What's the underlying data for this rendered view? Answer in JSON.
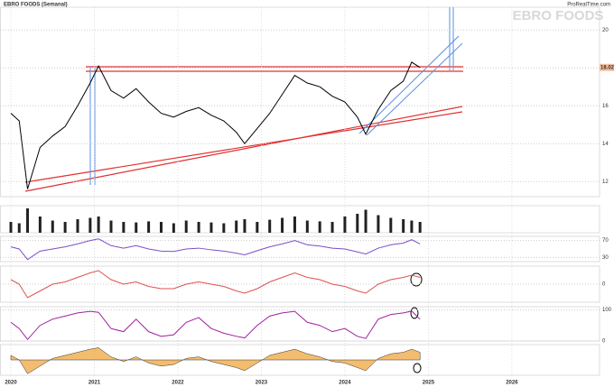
{
  "title": "EBRO FOODS (Semanal)",
  "watermark": "EBRO FOODS",
  "site": "ProRealTime.com",
  "chart_data": [
    {
      "type": "line",
      "color": "#000000",
      "x": [
        2020.0,
        2020.1,
        2020.2,
        2020.35,
        2020.5,
        2020.65,
        2020.8,
        2020.95,
        2021.05,
        2021.2,
        2021.35,
        2021.5,
        2021.65,
        2021.8,
        2021.95,
        2022.1,
        2022.25,
        2022.4,
        2022.55,
        2022.7,
        2022.8,
        2022.95,
        2023.1,
        2023.25,
        2023.4,
        2023.55,
        2023.7,
        2023.85,
        2024.0,
        2024.15,
        2024.25,
        2024.4,
        2024.55,
        2024.7,
        2024.8,
        2024.9
      ],
      "values": [
        15.6,
        15.2,
        11.6,
        13.8,
        14.4,
        14.9,
        16.0,
        17.2,
        18.1,
        16.8,
        16.4,
        16.9,
        16.2,
        15.6,
        15.4,
        15.7,
        15.9,
        15.5,
        15.2,
        14.6,
        14.0,
        14.8,
        15.6,
        16.6,
        17.6,
        17.2,
        17.0,
        16.5,
        16.2,
        15.4,
        14.5,
        15.8,
        16.8,
        17.3,
        18.3,
        18.02
      ],
      "xlim": [
        2019.87,
        2027.05
      ],
      "xticks": [
        2020,
        2021,
        2022,
        2023,
        2024,
        2025,
        2026
      ],
      "ylim": [
        11.2,
        21.2
      ],
      "yticks": [
        12,
        14,
        16,
        18,
        20
      ]
    },
    {
      "type": "bar",
      "color": "#222222",
      "x": [
        2020.0,
        2020.1,
        2020.2,
        2020.35,
        2020.5,
        2020.65,
        2020.8,
        2020.95,
        2021.05,
        2021.2,
        2021.35,
        2021.5,
        2021.65,
        2021.8,
        2021.95,
        2022.1,
        2022.25,
        2022.4,
        2022.55,
        2022.7,
        2022.8,
        2022.95,
        2023.1,
        2023.25,
        2023.4,
        2023.55,
        2023.7,
        2023.85,
        2024.0,
        2024.15,
        2024.25,
        2024.4,
        2024.55,
        2024.7,
        2024.8,
        2024.9
      ],
      "values": [
        40,
        35,
        90,
        60,
        45,
        40,
        50,
        55,
        60,
        45,
        40,
        38,
        42,
        40,
        35,
        45,
        40,
        38,
        35,
        45,
        50,
        40,
        48,
        55,
        60,
        45,
        42,
        40,
        60,
        70,
        85,
        65,
        55,
        50,
        45,
        40
      ],
      "ylim": [
        0,
        100
      ]
    },
    {
      "type": "line",
      "color": "#7b4fc9",
      "x": [
        2020.0,
        2020.1,
        2020.2,
        2020.35,
        2020.5,
        2020.65,
        2020.8,
        2020.95,
        2021.05,
        2021.2,
        2021.35,
        2021.5,
        2021.65,
        2021.8,
        2021.95,
        2022.1,
        2022.25,
        2022.4,
        2022.55,
        2022.7,
        2022.8,
        2022.95,
        2023.1,
        2023.25,
        2023.4,
        2023.55,
        2023.7,
        2023.85,
        2024.0,
        2024.15,
        2024.25,
        2024.4,
        2024.55,
        2024.7,
        2024.8,
        2024.9
      ],
      "values": [
        55,
        50,
        25,
        45,
        50,
        55,
        62,
        70,
        74,
        58,
        52,
        58,
        50,
        45,
        44,
        50,
        52,
        48,
        45,
        40,
        36,
        46,
        55,
        62,
        70,
        60,
        57,
        52,
        50,
        43,
        38,
        52,
        60,
        64,
        72,
        62
      ],
      "ylim": [
        20,
        80
      ],
      "yticks": [
        30,
        70
      ]
    },
    {
      "type": "line",
      "color": "#e05050",
      "x": [
        2020.0,
        2020.1,
        2020.2,
        2020.35,
        2020.5,
        2020.65,
        2020.8,
        2020.95,
        2021.05,
        2021.2,
        2021.35,
        2021.5,
        2021.65,
        2021.8,
        2021.95,
        2022.1,
        2022.25,
        2022.4,
        2022.55,
        2022.7,
        2022.8,
        2022.95,
        2023.1,
        2023.25,
        2023.4,
        2023.55,
        2023.7,
        2023.85,
        2024.0,
        2024.15,
        2024.25,
        2024.4,
        2024.55,
        2024.7,
        2024.8,
        2024.9
      ],
      "values": [
        0.2,
        0.0,
        -0.6,
        -0.3,
        0.0,
        0.1,
        0.3,
        0.5,
        0.6,
        0.2,
        0.0,
        0.1,
        -0.1,
        -0.2,
        -0.2,
        0.0,
        0.1,
        0.0,
        -0.1,
        -0.3,
        -0.4,
        -0.2,
        0.1,
        0.3,
        0.5,
        0.3,
        0.2,
        0.0,
        -0.1,
        -0.3,
        -0.4,
        0.0,
        0.2,
        0.3,
        0.4,
        0.3
      ],
      "ylim": [
        -0.8,
        0.8
      ],
      "yticks": [
        0
      ]
    },
    {
      "type": "line",
      "color": "#a020a0",
      "x": [
        2020.0,
        2020.1,
        2020.2,
        2020.35,
        2020.5,
        2020.65,
        2020.8,
        2020.95,
        2021.05,
        2021.2,
        2021.35,
        2021.5,
        2021.65,
        2021.8,
        2021.95,
        2022.1,
        2022.25,
        2022.4,
        2022.55,
        2022.7,
        2022.8,
        2022.95,
        2023.1,
        2023.25,
        2023.4,
        2023.55,
        2023.7,
        2023.85,
        2024.0,
        2024.15,
        2024.25,
        2024.4,
        2024.55,
        2024.7,
        2024.8,
        2024.9
      ],
      "values": [
        60,
        40,
        5,
        50,
        70,
        80,
        90,
        95,
        92,
        40,
        30,
        70,
        30,
        15,
        20,
        60,
        75,
        40,
        25,
        15,
        10,
        50,
        80,
        90,
        95,
        60,
        50,
        30,
        40,
        15,
        8,
        70,
        85,
        90,
        96,
        70
      ],
      "ylim": [
        0,
        110
      ],
      "yticks": [
        0,
        100
      ]
    },
    {
      "type": "area",
      "color": "#f0a030",
      "x": [
        2020.0,
        2020.1,
        2020.2,
        2020.35,
        2020.5,
        2020.65,
        2020.8,
        2020.95,
        2021.05,
        2021.2,
        2021.35,
        2021.5,
        2021.65,
        2021.8,
        2021.95,
        2022.1,
        2022.25,
        2022.4,
        2022.55,
        2022.7,
        2022.8,
        2022.95,
        2023.1,
        2023.25,
        2023.4,
        2023.55,
        2023.7,
        2023.85,
        2024.0,
        2024.15,
        2024.25,
        2024.4,
        2024.55,
        2024.7,
        2024.8,
        2024.9
      ],
      "values": [
        0.3,
        0.0,
        -0.9,
        -0.4,
        0.1,
        0.3,
        0.5,
        0.7,
        0.8,
        0.2,
        -0.1,
        0.2,
        -0.2,
        -0.4,
        -0.3,
        0.1,
        0.2,
        -0.1,
        -0.3,
        -0.5,
        -0.7,
        -0.2,
        0.3,
        0.5,
        0.7,
        0.4,
        0.2,
        -0.1,
        -0.2,
        -0.5,
        -0.7,
        0.1,
        0.4,
        0.5,
        0.7,
        0.5
      ],
      "ylim": [
        -1,
        1
      ]
    }
  ]
}
